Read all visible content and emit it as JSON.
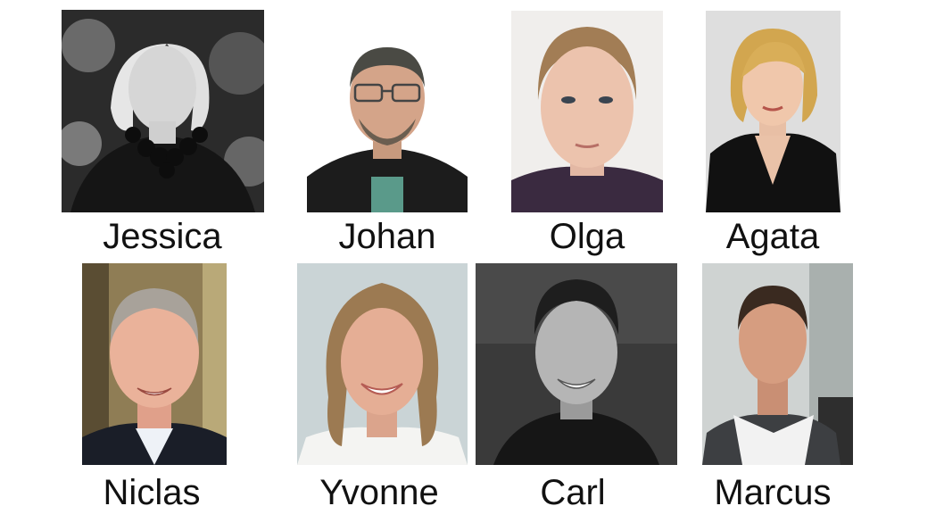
{
  "people": [
    {
      "name": "Jessica",
      "tone": "bw",
      "bg": "#3a3a3a"
    },
    {
      "name": "Johan",
      "tone": "color",
      "bg": "#ffffff"
    },
    {
      "name": "Olga",
      "tone": "color",
      "bg": "#efefef"
    },
    {
      "name": "Agata",
      "tone": "color",
      "bg": "#dcdcdc"
    },
    {
      "name": "Niclas",
      "tone": "color",
      "bg": "#9a8760"
    },
    {
      "name": "Yvonne",
      "tone": "color",
      "bg": "#cdd6d9"
    },
    {
      "name": "Carl",
      "tone": "bw",
      "bg": "#3c3c3c"
    },
    {
      "name": "Marcus",
      "tone": "color",
      "bg": "#c9cdcc"
    }
  ]
}
